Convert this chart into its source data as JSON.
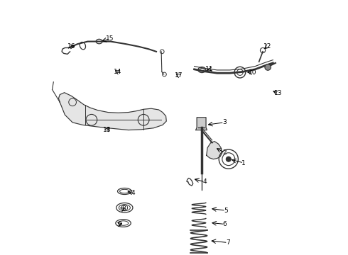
{
  "title": "",
  "background_color": "#ffffff",
  "line_color": "#333333",
  "text_color": "#000000",
  "fig_width": 4.9,
  "fig_height": 3.6,
  "dpi": 100
}
